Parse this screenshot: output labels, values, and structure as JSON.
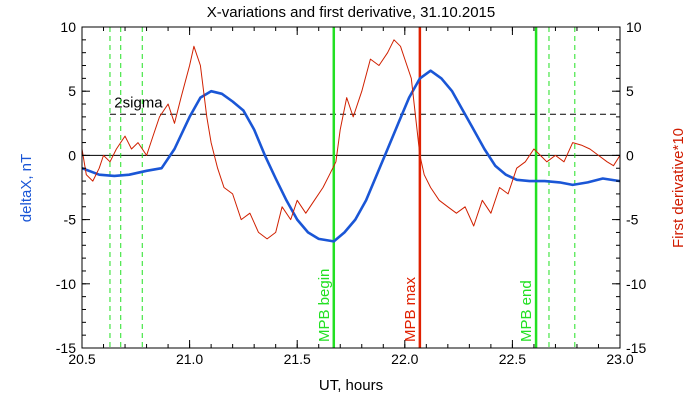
{
  "chart_data": {
    "type": "line",
    "title": "X-variations and first derivative, 31.10.2015",
    "xlabel": "UT, hours",
    "ylabel_left": "deltaX, nT",
    "ylabel_right": "First derivative*10",
    "xlim": [
      20.5,
      23.0
    ],
    "ylim": [
      -15,
      10
    ],
    "x_ticks": [
      "20.5",
      "21.0",
      "21.5",
      "22.0",
      "22.5",
      "23.0"
    ],
    "y_ticks_left": [
      "-15",
      "-10",
      "-5",
      "0",
      "5",
      "10"
    ],
    "y_ticks_right": [
      "-15",
      "-10",
      "-5",
      "0",
      "5",
      "10"
    ],
    "zero_line": 0,
    "sigma_line": {
      "label": "2sigma",
      "y": 3.2
    },
    "dashed_verticals": [
      20.63,
      20.68,
      20.78,
      22.67,
      22.79
    ],
    "markers": [
      {
        "label": "MPB begin",
        "x": 21.67,
        "color": "#22e022"
      },
      {
        "label": "MPB max",
        "x": 22.07,
        "color": "#e02000"
      },
      {
        "label": "MPB end",
        "x": 22.61,
        "color": "#22e022"
      }
    ],
    "series": [
      {
        "color": "#1a56d6",
        "x": [
          20.5,
          20.58,
          20.65,
          20.72,
          20.8,
          20.87,
          20.93,
          21.0,
          21.05,
          21.1,
          21.15,
          21.2,
          21.25,
          21.3,
          21.35,
          21.4,
          21.45,
          21.5,
          21.55,
          21.6,
          21.67,
          21.72,
          21.77,
          21.82,
          21.87,
          21.92,
          21.97,
          22.02,
          22.07,
          22.12,
          22.17,
          22.22,
          22.27,
          22.32,
          22.37,
          22.42,
          22.47,
          22.52,
          22.58,
          22.65,
          22.72,
          22.78,
          22.85,
          22.92,
          23.0
        ],
        "values": [
          -1.0,
          -1.5,
          -1.6,
          -1.5,
          -1.2,
          -1.0,
          0.5,
          3.0,
          4.5,
          5.0,
          4.8,
          4.2,
          3.5,
          2.0,
          0.0,
          -1.8,
          -3.5,
          -5.0,
          -6.0,
          -6.5,
          -6.7,
          -6.0,
          -5.0,
          -3.5,
          -1.5,
          0.5,
          2.5,
          4.5,
          6.0,
          6.6,
          6.0,
          5.0,
          3.5,
          2.0,
          0.5,
          -0.8,
          -1.5,
          -1.9,
          -2.0,
          -2.0,
          -2.1,
          -2.3,
          -2.1,
          -1.8,
          -2.0
        ]
      },
      {
        "color": "#d02000",
        "x": [
          20.5,
          20.52,
          20.55,
          20.58,
          20.6,
          20.63,
          20.66,
          20.7,
          20.73,
          20.76,
          20.8,
          20.83,
          20.86,
          20.9,
          20.93,
          20.96,
          21.0,
          21.02,
          21.05,
          21.08,
          21.1,
          21.13,
          21.16,
          21.2,
          21.24,
          21.28,
          21.32,
          21.36,
          21.4,
          21.43,
          21.47,
          21.5,
          21.54,
          21.58,
          21.62,
          21.65,
          21.68,
          21.7,
          21.73,
          21.76,
          21.8,
          21.84,
          21.88,
          21.92,
          21.95,
          21.98,
          22.0,
          22.03,
          22.05,
          22.07,
          22.09,
          22.12,
          22.16,
          22.2,
          22.24,
          22.28,
          22.32,
          22.36,
          22.4,
          22.44,
          22.48,
          22.52,
          22.56,
          22.6,
          22.63,
          22.66,
          22.7,
          22.74,
          22.78,
          22.82,
          22.86,
          22.9,
          22.94,
          22.97,
          23.0
        ],
        "values": [
          0.5,
          -1.5,
          -2.0,
          -1.0,
          0.0,
          -0.5,
          0.5,
          1.5,
          0.5,
          1.0,
          0.0,
          1.5,
          3.0,
          4.0,
          2.5,
          4.5,
          7.0,
          8.5,
          7.0,
          3.0,
          1.0,
          -1.0,
          -2.5,
          -3.0,
          -5.0,
          -4.5,
          -6.0,
          -6.5,
          -6.0,
          -4.0,
          -5.0,
          -3.5,
          -4.5,
          -3.5,
          -2.5,
          -1.5,
          -0.5,
          2.0,
          4.5,
          3.0,
          5.0,
          7.5,
          7.0,
          8.0,
          9.0,
          8.5,
          7.5,
          6.0,
          3.0,
          0.0,
          -1.5,
          -2.5,
          -3.5,
          -4.0,
          -4.5,
          -4.0,
          -5.5,
          -3.5,
          -4.5,
          -2.5,
          -3.0,
          -1.0,
          -0.5,
          0.5,
          0.0,
          -0.5,
          0.0,
          -0.5,
          1.0,
          0.8,
          0.5,
          0.0,
          -0.5,
          -0.8,
          0.0
        ]
      }
    ]
  }
}
